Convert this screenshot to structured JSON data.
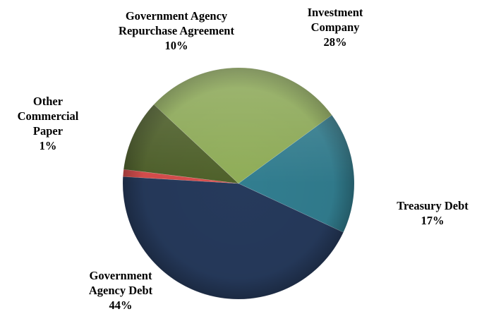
{
  "chart_data": {
    "type": "pie",
    "title": "",
    "slices": [
      {
        "label_lines": [
          "Investment",
          "Company"
        ],
        "percent_label": "28%",
        "value": 28,
        "color": "#8fad57"
      },
      {
        "label_lines": [
          "Treasury Debt"
        ],
        "percent_label": "17%",
        "value": 17,
        "color": "#327e90"
      },
      {
        "label_lines": [
          "Government",
          "Agency Debt"
        ],
        "percent_label": "44%",
        "value": 44,
        "color": "#263a5c"
      },
      {
        "label_lines": [
          "Other",
          "Commercial",
          "Paper"
        ],
        "percent_label": "1%",
        "value": 1,
        "color": "#d94d4c"
      },
      {
        "label_lines": [
          "Government Agency",
          "Repurchase Agreement"
        ],
        "percent_label": "10%",
        "value": 10,
        "color": "#4f612a"
      }
    ],
    "legend": "none",
    "data_labels": "outside"
  }
}
